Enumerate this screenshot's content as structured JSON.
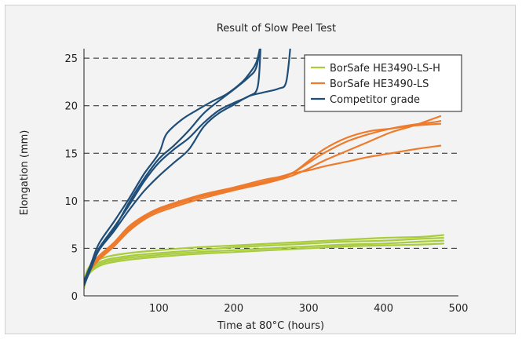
{
  "chart_data": {
    "type": "line",
    "title": "Result of Slow Peel Test",
    "xlabel": "Time at 80°C (hours)",
    "ylabel": "Elongation (mm)",
    "xlim": [
      0,
      500
    ],
    "ylim": [
      0,
      26
    ],
    "xticks": [
      100,
      200,
      300,
      400,
      500
    ],
    "yticks": [
      0,
      5,
      10,
      15,
      20,
      25
    ],
    "grid": "horizontal dashed at 5, 10, 15, 20, 25",
    "legend_position": "top-right",
    "series": [
      {
        "name": "BorSafe HE3490-LS-H",
        "color": "#a8cc3c",
        "lines": [
          [
            [
              0,
              1.5
            ],
            [
              5,
              2.8
            ],
            [
              15,
              3.6
            ],
            [
              30,
              4.1
            ],
            [
              60,
              4.5
            ],
            [
              100,
              4.8
            ],
            [
              150,
              5.1
            ],
            [
              200,
              5.3
            ],
            [
              250,
              5.5
            ],
            [
              300,
              5.7
            ],
            [
              350,
              5.9
            ],
            [
              400,
              6.1
            ],
            [
              450,
              6.2
            ],
            [
              480,
              6.4
            ]
          ],
          [
            [
              0,
              1.2
            ],
            [
              5,
              2.5
            ],
            [
              15,
              3.3
            ],
            [
              30,
              3.8
            ],
            [
              60,
              4.2
            ],
            [
              100,
              4.5
            ],
            [
              150,
              4.8
            ],
            [
              200,
              5.1
            ],
            [
              250,
              5.3
            ],
            [
              300,
              5.5
            ],
            [
              350,
              5.7
            ],
            [
              400,
              5.8
            ],
            [
              450,
              6.0
            ],
            [
              480,
              6.1
            ]
          ],
          [
            [
              0,
              1.0
            ],
            [
              5,
              2.3
            ],
            [
              15,
              3.1
            ],
            [
              30,
              3.6
            ],
            [
              60,
              4.0
            ],
            [
              100,
              4.3
            ],
            [
              150,
              4.6
            ],
            [
              200,
              4.8
            ],
            [
              250,
              5.0
            ],
            [
              300,
              5.2
            ],
            [
              350,
              5.4
            ],
            [
              400,
              5.5
            ],
            [
              450,
              5.7
            ],
            [
              480,
              5.8
            ]
          ],
          [
            [
              0,
              0.8
            ],
            [
              5,
              2.1
            ],
            [
              15,
              2.9
            ],
            [
              30,
              3.4
            ],
            [
              60,
              3.8
            ],
            [
              100,
              4.1
            ],
            [
              150,
              4.4
            ],
            [
              200,
              4.6
            ],
            [
              250,
              4.8
            ],
            [
              300,
              5.0
            ],
            [
              350,
              5.2
            ],
            [
              400,
              5.3
            ],
            [
              450,
              5.4
            ],
            [
              480,
              5.5
            ]
          ]
        ]
      },
      {
        "name": "BorSafe HE3490-LS",
        "color": "#ee7a2c",
        "lines": [
          [
            [
              0,
              1.5
            ],
            [
              8,
              3.0
            ],
            [
              20,
              4.2
            ],
            [
              40,
              5.6
            ],
            [
              60,
              7.3
            ],
            [
              80,
              8.4
            ],
            [
              100,
              9.2
            ],
            [
              130,
              10.0
            ],
            [
              160,
              10.7
            ],
            [
              200,
              11.4
            ],
            [
              240,
              12.2
            ],
            [
              260,
              12.5
            ],
            [
              280,
              13.0
            ],
            [
              300,
              14.0
            ],
            [
              320,
              15.0
            ],
            [
              350,
              16.2
            ],
            [
              380,
              17.0
            ],
            [
              410,
              17.6
            ],
            [
              440,
              18.0
            ],
            [
              470,
              18.3
            ],
            [
              476,
              18.4
            ]
          ],
          [
            [
              0,
              1.3
            ],
            [
              8,
              2.8
            ],
            [
              20,
              4.0
            ],
            [
              40,
              5.4
            ],
            [
              60,
              7.0
            ],
            [
              80,
              8.2
            ],
            [
              100,
              9.0
            ],
            [
              130,
              9.8
            ],
            [
              160,
              10.5
            ],
            [
              200,
              11.2
            ],
            [
              240,
              11.9
            ],
            [
              260,
              12.3
            ],
            [
              280,
              13.0
            ],
            [
              300,
              14.2
            ],
            [
              320,
              15.4
            ],
            [
              350,
              16.6
            ],
            [
              380,
              17.3
            ],
            [
              410,
              17.6
            ],
            [
              440,
              17.9
            ],
            [
              476,
              18.1
            ]
          ],
          [
            [
              0,
              1.1
            ],
            [
              8,
              2.6
            ],
            [
              20,
              3.8
            ],
            [
              40,
              5.2
            ],
            [
              60,
              6.8
            ],
            [
              80,
              8.0
            ],
            [
              100,
              8.8
            ],
            [
              130,
              9.6
            ],
            [
              160,
              10.3
            ],
            [
              200,
              11.1
            ],
            [
              240,
              11.8
            ],
            [
              260,
              12.2
            ],
            [
              280,
              12.7
            ],
            [
              300,
              13.4
            ],
            [
              320,
              14.2
            ],
            [
              350,
              15.2
            ],
            [
              380,
              16.2
            ],
            [
              410,
              17.2
            ],
            [
              440,
              17.9
            ],
            [
              476,
              18.9
            ]
          ],
          [
            [
              0,
              1.2
            ],
            [
              8,
              2.7
            ],
            [
              20,
              3.9
            ],
            [
              40,
              5.3
            ],
            [
              60,
              7.1
            ],
            [
              80,
              8.3
            ],
            [
              100,
              9.1
            ],
            [
              130,
              9.9
            ],
            [
              160,
              10.6
            ],
            [
              200,
              11.3
            ],
            [
              240,
              12.0
            ],
            [
              260,
              12.4
            ],
            [
              280,
              12.9
            ],
            [
              300,
              13.2
            ],
            [
              320,
              13.6
            ],
            [
              350,
              14.1
            ],
            [
              380,
              14.6
            ],
            [
              410,
              15.0
            ],
            [
              440,
              15.4
            ],
            [
              476,
              15.8
            ]
          ]
        ]
      },
      {
        "name": "Competitor grade",
        "color": "#1f4e79",
        "lines": [
          [
            [
              0,
              1.5
            ],
            [
              10,
              3.5
            ],
            [
              20,
              5.5
            ],
            [
              40,
              7.8
            ],
            [
              60,
              10.2
            ],
            [
              80,
              12.8
            ],
            [
              100,
              15.0
            ],
            [
              110,
              17.0
            ],
            [
              130,
              18.5
            ],
            [
              150,
              19.5
            ],
            [
              170,
              20.4
            ],
            [
              190,
              21.2
            ],
            [
              210,
              22.4
            ],
            [
              220,
              23.3
            ],
            [
              228,
              24.2
            ],
            [
              232,
              25.0
            ],
            [
              236,
              26.5
            ]
          ],
          [
            [
              0,
              1.3
            ],
            [
              10,
              3.2
            ],
            [
              20,
              5.0
            ],
            [
              40,
              7.2
            ],
            [
              60,
              9.5
            ],
            [
              80,
              12.0
            ],
            [
              100,
              14.0
            ],
            [
              120,
              15.4
            ],
            [
              140,
              16.6
            ],
            [
              160,
              18.2
            ],
            [
              180,
              19.5
            ],
            [
              200,
              20.3
            ],
            [
              220,
              21.0
            ],
            [
              232,
              22.0
            ],
            [
              236,
              26.5
            ]
          ],
          [
            [
              0,
              1.1
            ],
            [
              10,
              3.0
            ],
            [
              20,
              4.8
            ],
            [
              40,
              6.8
            ],
            [
              60,
              9.0
            ],
            [
              80,
              11.0
            ],
            [
              100,
              12.6
            ],
            [
              120,
              14.0
            ],
            [
              140,
              15.4
            ],
            [
              160,
              17.8
            ],
            [
              180,
              19.2
            ],
            [
              200,
              20.1
            ],
            [
              220,
              21.0
            ],
            [
              240,
              21.4
            ],
            [
              260,
              21.8
            ],
            [
              270,
              22.5
            ],
            [
              276,
              26.5
            ]
          ],
          [
            [
              0,
              1.2
            ],
            [
              10,
              3.1
            ],
            [
              20,
              4.9
            ],
            [
              40,
              7.0
            ],
            [
              60,
              9.8
            ],
            [
              80,
              12.3
            ],
            [
              100,
              14.4
            ],
            [
              120,
              15.8
            ],
            [
              140,
              17.4
            ],
            [
              160,
              19.2
            ],
            [
              180,
              20.5
            ],
            [
              200,
              21.7
            ],
            [
              220,
              23.0
            ],
            [
              230,
              24.0
            ],
            [
              236,
              26.5
            ]
          ]
        ]
      }
    ]
  }
}
